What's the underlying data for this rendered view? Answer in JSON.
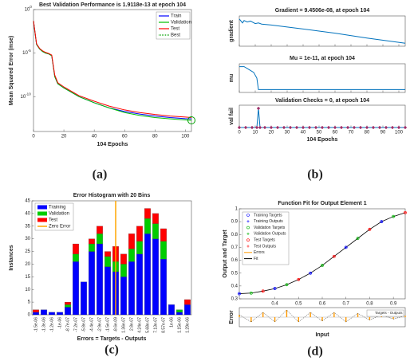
{
  "chart_data": [
    {
      "type": "line",
      "caption": "(a)",
      "title": "Best Validation Performance is 1.9118e-13 at epoch 104",
      "xlabel": "104 Epochs",
      "ylabel": "Mean Squared Error  (mse)",
      "log_y": true,
      "xlim": [
        0,
        104
      ],
      "xticks": [
        0,
        20,
        40,
        60,
        80,
        100
      ],
      "ylim": [
        1e-14,
        1
      ],
      "yticks": [
        {
          "value": 1,
          "label": "10",
          "exponent": "0"
        },
        {
          "value": 1e-05,
          "label": "10",
          "exponent": "-5"
        },
        {
          "value": 1e-10,
          "label": "10",
          "exponent": "-10"
        }
      ],
      "x": [
        0,
        2,
        4,
        6,
        8,
        10,
        12,
        14,
        16,
        20,
        30,
        40,
        50,
        60,
        70,
        80,
        90,
        100,
        104
      ],
      "series": [
        {
          "name": "Train",
          "color": "#0000ff",
          "values": [
            0.05,
            0.0001,
            3e-05,
            1.5e-05,
            1e-05,
            8e-06,
            5e-06,
            2e-08,
            3e-09,
            1e-09,
            1e-10,
            2e-11,
            5e-12,
            2e-12,
            1e-12,
            6e-13,
            4e-13,
            3e-13,
            2.8e-13
          ]
        },
        {
          "name": "Validation",
          "color": "#00c000",
          "values": [
            0.05,
            0.0001,
            3e-05,
            1.5e-05,
            1e-05,
            8e-06,
            5e-06,
            2e-08,
            3e-09,
            1e-09,
            1e-10,
            2e-11,
            5e-12,
            1.5e-12,
            7e-13,
            4e-13,
            2.8e-13,
            2.1e-13,
            1.9118e-13
          ]
        },
        {
          "name": "Test",
          "color": "#ff0000",
          "values": [
            0.05,
            0.00012,
            3.5e-05,
            1.8e-05,
            1.2e-05,
            9e-06,
            6e-06,
            3e-08,
            4e-09,
            1.3e-09,
            1.3e-10,
            3e-11,
            8e-12,
            3e-12,
            1.5e-12,
            9e-13,
            6e-13,
            4.5e-13,
            4e-13
          ]
        }
      ],
      "best": {
        "name": "Best",
        "color": "#00a000",
        "x": 104,
        "y": 1.9118e-13
      }
    },
    {
      "type": "training_state",
      "caption": "(b)",
      "xlabel": "104 Epochs",
      "xlim": [
        0,
        104
      ],
      "xticks": [
        0,
        10,
        20,
        30,
        40,
        50,
        60,
        70,
        80,
        90,
        100
      ],
      "panels": [
        {
          "title": "Gradient = 9.4506e-08, at epoch 104",
          "ylabel": "gradient",
          "log_y": true,
          "ylim": [
            1e-08,
            100
          ],
          "color": "#0072bd",
          "x": [
            0,
            2,
            3,
            5,
            7,
            10,
            12,
            14,
            20,
            40,
            60,
            80,
            104
          ],
          "values": [
            10,
            0.5,
            3,
            1,
            2,
            0.3,
            0.5,
            0.2,
            0.1,
            0.005,
            0.0002,
            5e-06,
            9.4506e-08
          ]
        },
        {
          "title": "Mu = 1e-11, at epoch 104",
          "ylabel": "mu",
          "log_y": true,
          "ylim": [
            1e-12,
            0.01
          ],
          "color": "#0072bd",
          "x": [
            0,
            3,
            6,
            9,
            11,
            12,
            104
          ],
          "values": [
            0.001,
            0.001,
            0.0001,
            1e-05,
            1e-07,
            1e-11,
            1e-11
          ]
        },
        {
          "title": "Validation Checks = 0, at epoch 104",
          "ylabel": "val fail",
          "ylim": [
            0,
            7
          ],
          "color": "#0072bd",
          "marker_color": "#a0306a",
          "x": [
            0,
            4,
            8,
            11,
            12,
            13,
            16,
            20,
            24,
            28,
            32,
            36,
            40,
            44,
            48,
            52,
            56,
            60,
            64,
            68,
            72,
            76,
            80,
            84,
            88,
            92,
            96,
            100,
            104
          ],
          "values": [
            0,
            0,
            0,
            0,
            6,
            0,
            0,
            0,
            0,
            0,
            0,
            0,
            0,
            0,
            0,
            0,
            0,
            0,
            0,
            0,
            0,
            0,
            0,
            0,
            0,
            0,
            0,
            0,
            0
          ]
        }
      ]
    },
    {
      "type": "histogram",
      "caption": "(c)",
      "title": "Error Histogram with 20 Bins",
      "xlabel": "Errors = Targets - Outputs",
      "ylabel": "Instances",
      "ylim": [
        0,
        45
      ],
      "yticks": [
        0,
        5,
        10,
        15,
        20,
        25,
        30,
        35,
        40,
        45
      ],
      "categories": [
        "-1.5e-06",
        "-1.3e-06",
        "-1.2e-06",
        "-1e-06",
        "-8.7e-07",
        "-7.2e-07",
        "-5.8e-07",
        "-4.4e-07",
        "-2.9e-07",
        "-1.5e-07",
        "-8.6e-09",
        "1.36e-07",
        "2.8e-07",
        "4.24e-07",
        "5.68e-07",
        "7.13e-07",
        "8.57e-07",
        "1e-06",
        "1.15e-06",
        "1.29e-06"
      ],
      "series": [
        {
          "name": "Training",
          "color": "#0000ff",
          "values": [
            1,
            2,
            1,
            1,
            3,
            21,
            13,
            25,
            28,
            19,
            17,
            15,
            21,
            24,
            32,
            30,
            22,
            4,
            1,
            4
          ]
        },
        {
          "name": "Validation",
          "color": "#00cc00",
          "values": [
            0,
            0,
            0,
            0,
            1,
            3,
            0,
            3,
            4,
            4,
            4,
            5,
            5,
            5,
            6,
            6,
            7,
            0,
            1,
            0
          ]
        },
        {
          "name": "Test",
          "color": "#ff0000",
          "values": [
            1,
            0,
            0,
            0,
            1,
            4,
            0,
            2,
            3,
            2,
            6,
            4,
            6,
            6,
            4,
            4,
            5,
            0,
            0,
            2
          ]
        }
      ],
      "zero_line": {
        "name": "Zero Error",
        "color": "#ffa500"
      }
    },
    {
      "type": "function_fit",
      "caption": "(d)",
      "title": "Function Fit for Output Element 1",
      "xlabel": "Input",
      "ylabel": "Output and Target",
      "error_ylabel": "Error",
      "xlim": [
        0.25,
        0.95
      ],
      "xticks": [
        0.4,
        0.5,
        0.6,
        0.7,
        0.8,
        0.9
      ],
      "ylim": [
        0.3,
        1
      ],
      "yticks": [
        0.3,
        0.4,
        0.5,
        0.6,
        0.7,
        0.8,
        0.9,
        1
      ],
      "fit": {
        "name": "Fit",
        "color": "#000000",
        "x": [
          0.25,
          0.3,
          0.35,
          0.4,
          0.45,
          0.5,
          0.55,
          0.6,
          0.65,
          0.7,
          0.75,
          0.8,
          0.85,
          0.9,
          0.95
        ],
        "values": [
          0.34,
          0.345,
          0.36,
          0.38,
          0.41,
          0.45,
          0.5,
          0.56,
          0.63,
          0.7,
          0.77,
          0.84,
          0.9,
          0.94,
          0.97
        ]
      },
      "series": [
        {
          "name": "Training Targets",
          "color": "#0000ff",
          "x": [
            0.25,
            0.4,
            0.55,
            0.7,
            0.85
          ],
          "values": [
            0.34,
            0.38,
            0.5,
            0.7,
            0.9
          ]
        },
        {
          "name": "Training Outputs",
          "color": "#0000ff",
          "x": [
            0.25,
            0.4,
            0.55,
            0.7,
            0.85
          ],
          "values": [
            0.34,
            0.38,
            0.5,
            0.7,
            0.9
          ]
        },
        {
          "name": "Validation Targets",
          "color": "#00b000",
          "x": [
            0.3,
            0.45,
            0.6,
            0.75,
            0.9
          ],
          "values": [
            0.345,
            0.41,
            0.56,
            0.77,
            0.94
          ]
        },
        {
          "name": "Validation Outputs",
          "color": "#00b000",
          "x": [
            0.3,
            0.45,
            0.6,
            0.75,
            0.9
          ],
          "values": [
            0.345,
            0.41,
            0.56,
            0.77,
            0.94
          ]
        },
        {
          "name": "Test Targets",
          "color": "#ff0000",
          "x": [
            0.35,
            0.5,
            0.65,
            0.8,
            0.95
          ],
          "values": [
            0.36,
            0.45,
            0.63,
            0.84,
            0.97
          ]
        },
        {
          "name": "Test Outputs",
          "color": "#ff0000",
          "x": [
            0.35,
            0.5,
            0.65,
            0.8,
            0.95
          ],
          "values": [
            0.36,
            0.45,
            0.63,
            0.84,
            0.97
          ]
        }
      ],
      "errors": {
        "name": "Errors",
        "color": "#ff9900",
        "legend": "Targets - Outputs",
        "ylim": [
          -2,
          2
        ],
        "x": [
          0.25,
          0.3,
          0.35,
          0.4,
          0.45,
          0.5,
          0.55,
          0.6,
          0.65,
          0.7,
          0.75,
          0.8,
          0.85,
          0.9,
          0.95
        ],
        "values": [
          0.5,
          -1,
          1,
          -1,
          1.5,
          -1,
          1,
          -0.8,
          1,
          -1,
          0.8,
          -0.6,
          0.5,
          -0.4,
          0.3
        ]
      }
    }
  ]
}
